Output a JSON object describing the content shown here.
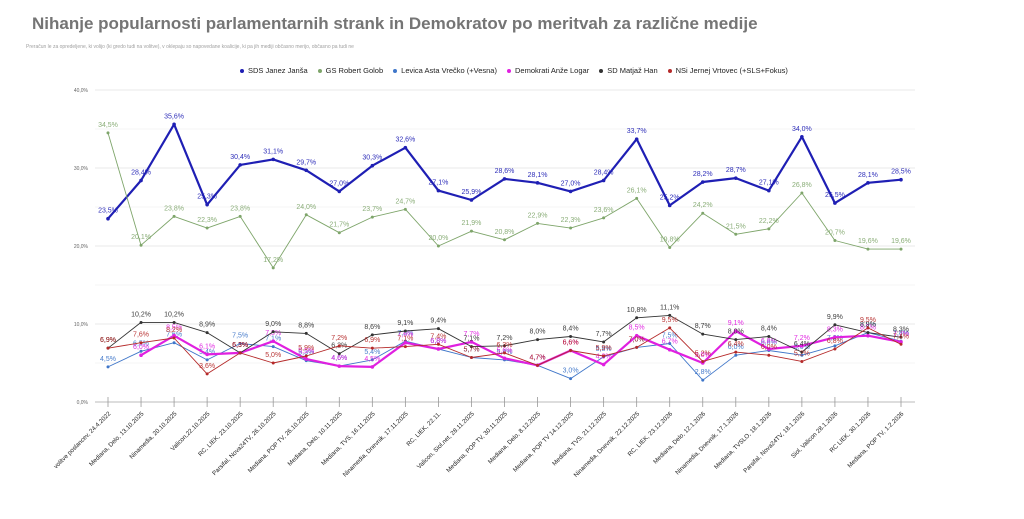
{
  "title": "Nihanje popularnosti parlamentarnih strank in Demokratov po meritvah za različne medije",
  "subtitle": "Preračun le za opredeljene, ki volijo (ki gredo tudi na volitve), v oklepaju so napovedane koalicije, ki pa jih mediji občasno merijo, občasno pa tudi ne",
  "chart_data": {
    "type": "line",
    "title": "Nihanje popularnosti parlamentarnih strank in Demokratov po meritvah za različne medije",
    "xlabel": "",
    "ylabel": "",
    "ylim": [
      0,
      40
    ],
    "yticks": [
      "0,0%",
      "10,0%",
      "20,0%",
      "30,0%",
      "40,0%"
    ],
    "grid": true,
    "legend_position": "top",
    "categories": [
      "volitve poslancev, 24.4.2022",
      "Mediana, Delo, 13.10.2025",
      "Ninamedia, 20.10.2025",
      "Valicon,22.10.2025",
      "RC, LIEK, 23.10.2025",
      "Parsifal, Nova24TV, 26.10.2025",
      "Mediana, POP TV, 26.10.2025",
      "Mediana, Delo, 10.11.2025",
      "Mediana, TVS, 16.11.2025",
      "Ninamedia, Dnevnik, 17.11.2025",
      "RC, LIEK, 22.11.",
      "Valicon, Siol.net, 28.11.2025",
      "Mediana, POP TV, 30.11.2025",
      "Mediana, Delo, 8.12.2025",
      "Mediana, POP TV 14.12.2025",
      "Mediana, TVS, 21.12.2025",
      "Ninamedia, Dnevnik, 22.12.2025",
      "RC, LIEK, 23.12.2026",
      "Mediana, Delo, 12.1.2026",
      "Ninamedia, Dnevnik, 17.1.2026",
      "Mediana, TVSLO, 18.1.2026",
      "Parsifal, Nova24TV, 18.1.2026",
      "Siol, Valicon 28.1.2026",
      "RC LIEK, 30.1.2026",
      "Mediana, POP TV, 1.2.2026"
    ],
    "series": [
      {
        "name": "SDS Janez Janša",
        "color": "#1f1fb4",
        "width": "thick",
        "values": [
          23.5,
          28.4,
          35.6,
          25.3,
          30.4,
          31.1,
          29.7,
          27.0,
          30.3,
          32.6,
          27.1,
          25.9,
          28.6,
          28.1,
          27.0,
          28.4,
          33.7,
          25.2,
          28.2,
          28.7,
          27.1,
          34.0,
          25.5,
          28.1,
          28.5
        ]
      },
      {
        "name": "GS Robert Golob",
        "color": "#7ea56a",
        "width": "thin",
        "values": [
          34.5,
          20.1,
          23.8,
          22.3,
          23.8,
          17.2,
          24.0,
          21.7,
          23.7,
          24.7,
          20.0,
          21.9,
          20.8,
          22.9,
          22.3,
          23.6,
          26.1,
          19.8,
          24.2,
          21.5,
          22.2,
          26.8,
          20.7,
          19.6,
          19.6
        ]
      },
      {
        "name": "Levica Asta Vrečko (+Vesna)",
        "color": "#3f76c9",
        "width": "thin",
        "values": [
          4.5,
          6.5,
          7.6,
          5.4,
          7.5,
          7.1,
          5.3,
          4.6,
          5.4,
          7.8,
          6.8,
          5.7,
          5.4,
          4.7,
          3.0,
          5.8,
          7.0,
          7.5,
          2.8,
          6.0,
          6.6,
          6.0,
          7.2,
          8.9,
          7.8
        ]
      },
      {
        "name": "Demokrati Anže Logar",
        "color": "#e020e0",
        "width": "thick",
        "values": [
          null,
          6.0,
          8.5,
          6.1,
          6.3,
          7.8,
          5.5,
          4.6,
          4.5,
          7.6,
          6.8,
          7.7,
          5.6,
          4.7,
          6.6,
          4.8,
          8.5,
          6.7,
          5.0,
          9.1,
          6.8,
          7.2,
          8.3,
          8.5,
          7.7
        ]
      },
      {
        "name": "SD Matjaž Han",
        "color": "#333333",
        "width": "thin",
        "values": [
          6.9,
          10.2,
          10.2,
          8.9,
          6.3,
          9.0,
          8.8,
          6.2,
          8.6,
          9.1,
          9.4,
          7.1,
          7.2,
          8.0,
          8.4,
          7.7,
          10.8,
          11.1,
          8.7,
          8.0,
          8.4,
          6.4,
          9.9,
          8.9,
          8.3
        ]
      },
      {
        "name": "NSi Jernej Vrtovec (+SLS+Fokus)",
        "color": "#b52a2a",
        "width": "thin",
        "values": [
          6.9,
          7.6,
          8.2,
          3.6,
          6.3,
          5.0,
          5.9,
          7.2,
          6.9,
          7.1,
          7.4,
          5.7,
          6.3,
          4.7,
          6.6,
          5.9,
          7.0,
          9.5,
          5.2,
          6.4,
          6.0,
          5.2,
          6.8,
          9.5,
          7.4
        ]
      }
    ]
  }
}
